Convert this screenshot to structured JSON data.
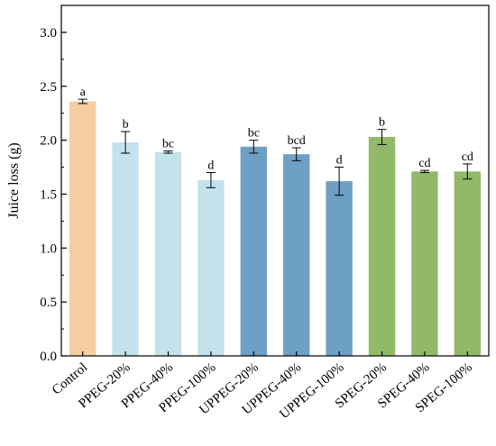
{
  "chart_data": {
    "type": "bar",
    "title": "",
    "xlabel": "",
    "ylabel": "Juice loss (g)",
    "ylim": [
      0,
      3.25
    ],
    "yticks": [
      "0.0",
      "0.5",
      "1.0",
      "1.5",
      "2.0",
      "2.5",
      "3.0"
    ],
    "ytick_values": [
      0,
      0.5,
      1.0,
      1.5,
      2.0,
      2.5,
      3.0
    ],
    "grid": false,
    "categories": [
      "Control",
      "PPEG-20%",
      "PPEG-40%",
      "PPEG-100%",
      "UPPEG-20%",
      "UPPEG-40%",
      "UPPEG-100%",
      "SPEG-20%",
      "SPEG-40%",
      "SPEG-100%"
    ],
    "values": [
      2.36,
      1.98,
      1.89,
      1.63,
      1.94,
      1.87,
      1.62,
      2.03,
      1.71,
      1.71
    ],
    "errors": [
      0.02,
      0.1,
      0.01,
      0.07,
      0.06,
      0.06,
      0.13,
      0.07,
      0.01,
      0.07
    ],
    "significance_labels": [
      "a",
      "b",
      "bc",
      "d",
      "bc",
      "bcd",
      "d",
      "b",
      "cd",
      "cd"
    ],
    "colors": [
      "#f6cda3",
      "#c3e2ec",
      "#c3e2ec",
      "#c3e2ec",
      "#6e9fc4",
      "#6e9fc4",
      "#6e9fc4",
      "#92b967",
      "#92b967",
      "#92b967"
    ]
  }
}
